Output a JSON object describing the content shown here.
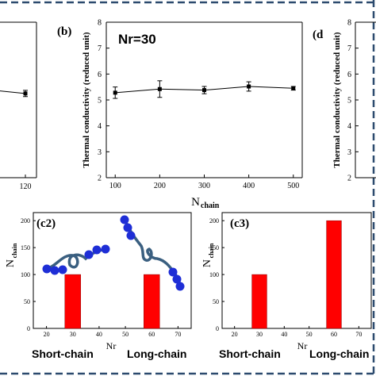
{
  "colors": {
    "frame": "#2c4a6e",
    "bar": "#ff0000",
    "bead": "#1e2ed6",
    "chain": "#3a5f80",
    "marker": "#000000"
  },
  "panels": {
    "a": {
      "y_value_text": "",
      "x_tick_right": "120"
    },
    "b": {
      "label": "(b)",
      "annotation": "Nr=30",
      "ylabel": "Thermal conductivity (reduced unit)"
    },
    "d": {
      "label": "(d",
      "ylabel": "Thermal conductivity (reduced unit)",
      "y_ticks": [
        "8",
        "7",
        "6",
        "5",
        "4",
        "3",
        "2"
      ]
    },
    "c2": {
      "label": "(c2)",
      "ylabel_main": "N",
      "ylabel_sub": "chain",
      "xlabel": "Nr"
    },
    "c3": {
      "label": "(c3)",
      "ylabel_main": "N",
      "ylabel_sub": "chain",
      "xlabel": "Nr"
    }
  },
  "shared_xlabel": {
    "main": "N",
    "sub": "chain"
  },
  "captions": {
    "short_c2": "Short-chain",
    "long_c2": "Long-chain",
    "short_c3": "Short-chain",
    "long_c3": "Long-chain"
  },
  "chart_data": [
    {
      "panel": "a",
      "type": "scatter",
      "x": [
        120
      ],
      "y": [
        5.25
      ],
      "yerr": [
        0.12
      ],
      "ylim": [
        2,
        8
      ],
      "grid": false
    },
    {
      "panel": "b",
      "type": "line",
      "title": "Nr=30",
      "xlabel": "N_chain",
      "ylabel": "Thermal conductivity (reduced unit)",
      "x": [
        100,
        200,
        300,
        400,
        500
      ],
      "y": [
        5.28,
        5.42,
        5.38,
        5.52,
        5.45
      ],
      "yerr": [
        0.22,
        0.32,
        0.14,
        0.18,
        0.07
      ],
      "xlim": [
        80,
        520
      ],
      "ylim": [
        2,
        8
      ],
      "x_ticks": [
        "100",
        "200",
        "300",
        "400",
        "500"
      ],
      "y_ticks": [
        "2",
        "3",
        "4",
        "5",
        "6",
        "7",
        "8"
      ],
      "grid": false
    },
    {
      "panel": "c2",
      "type": "bar",
      "xlabel": "Nr",
      "ylabel": "N_chain",
      "x": [
        30,
        60
      ],
      "values": [
        100,
        100
      ],
      "xlim": [
        15,
        75
      ],
      "ylim": [
        0,
        215
      ],
      "x_ticks": [
        "20",
        "30",
        "40",
        "50",
        "60",
        "70"
      ],
      "y_ticks": [
        "0",
        "50",
        "100",
        "150",
        "200"
      ],
      "grid": false
    },
    {
      "panel": "c3",
      "type": "bar",
      "xlabel": "Nr",
      "ylabel": "N_chain",
      "x": [
        30,
        60
      ],
      "values": [
        100,
        200
      ],
      "xlim": [
        15,
        75
      ],
      "ylim": [
        0,
        215
      ],
      "x_ticks": [
        "20",
        "30",
        "40",
        "50",
        "60",
        "70"
      ],
      "y_ticks": [
        "0",
        "50",
        "100",
        "150",
        "200"
      ],
      "grid": false
    }
  ]
}
